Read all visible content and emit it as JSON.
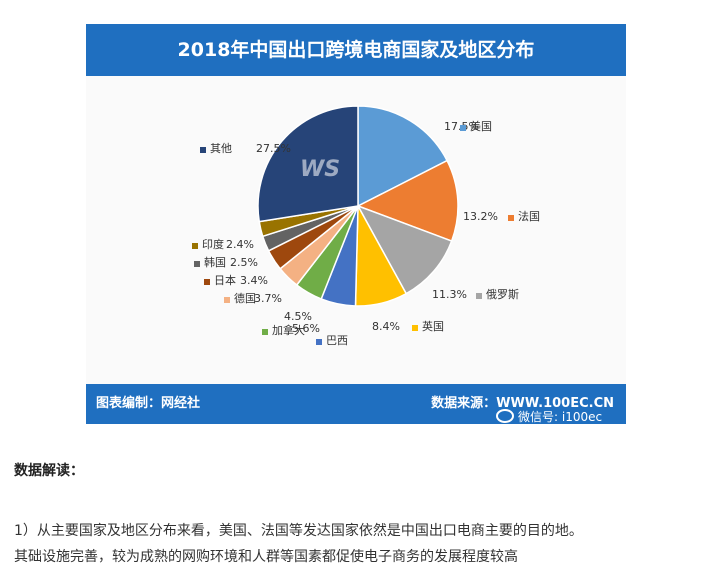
{
  "chart_data": {
    "type": "pie",
    "title": "2018年中国出口跨境电商国家及地区分布",
    "series": [
      {
        "label": "美国",
        "value": 17.5,
        "color": "#5b9bd5"
      },
      {
        "label": "法国",
        "value": 13.2,
        "color": "#ed7d31"
      },
      {
        "label": "俄罗斯",
        "value": 11.3,
        "color": "#a5a5a5"
      },
      {
        "label": "英国",
        "value": 8.4,
        "color": "#ffc000"
      },
      {
        "label": "巴西",
        "value": 5.6,
        "color": "#4472c4"
      },
      {
        "label": "加拿大",
        "value": 4.5,
        "color": "#70ad47"
      },
      {
        "label": "德国",
        "value": 3.7,
        "color": "#f4b183"
      },
      {
        "label": "日本",
        "value": 3.4,
        "color": "#9e480e"
      },
      {
        "label": "韩国",
        "value": 2.5,
        "color": "#636363"
      },
      {
        "label": "印度",
        "value": 2.4,
        "color": "#997300"
      },
      {
        "label": "其他",
        "value": 27.5,
        "color": "#264478"
      }
    ],
    "value_labels": [
      "17.5%",
      "13.2%",
      "11.3%",
      "8.4%",
      "5.6%",
      "4.5%",
      "3.7%",
      "3.4%",
      "2.5%",
      "2.4%",
      "27.5%"
    ]
  },
  "footer": {
    "left": "图表编制：网经社",
    "right": "数据来源：WWW.100EC.CN",
    "wechat": "微信号: i100ec"
  },
  "article": {
    "heading": "数据解读：",
    "line1": "1）从主要国家及地区分布来看，美国、法国等发达国家依然是中国出口电商主要的目的地。",
    "line2": "其础设施完善，较为成熟的网购环境和人群等国素都促使电子商务的发展程度较高"
  }
}
